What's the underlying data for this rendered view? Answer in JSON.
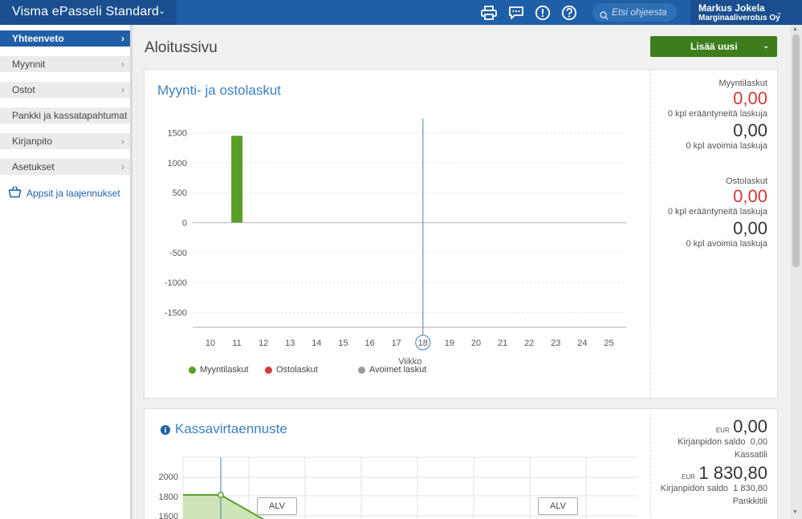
{
  "app": {
    "title": "Visma ePasseli Standard"
  },
  "search": {
    "placeholder": "Etsi ohjeesta"
  },
  "user": {
    "name": "Markus Jokela",
    "company": "Marginaaliverotus Oy"
  },
  "sidebar": {
    "items": [
      {
        "label": "Yhteenveto",
        "active": true
      },
      {
        "label": "Myynnit"
      },
      {
        "label": "Ostot"
      },
      {
        "label": "Pankki ja kassatapahtumat"
      },
      {
        "label": "Kirjanpito"
      },
      {
        "label": "Asetukset"
      }
    ],
    "apps_label": "Appsit ja laajennukset"
  },
  "page": {
    "title": "Aloitussivu",
    "add_button": "Lisää uusi"
  },
  "invoices_card": {
    "title": "Myynti- ja ostolaskut",
    "sales": {
      "label": "Myyntilaskut",
      "overdue_value": "0,00",
      "overdue_text": "0 kpl erääntyneitä laskuja",
      "open_value": "0,00",
      "open_text": "0 kpl avoimia laskuja"
    },
    "purchases": {
      "label": "Ostolaskut",
      "overdue_value": "0,00",
      "overdue_text": "0 kpl erääntyneitä laskuja",
      "open_value": "0,00",
      "open_text": "0 kpl avoimia laskuja"
    }
  },
  "cash_card": {
    "title": "Kassavirtaennuste",
    "cash": {
      "currency": "EUR",
      "value": "0,00",
      "book_label": "Kirjanpidon saldo",
      "book_value": "0,00",
      "account": "Kassatili"
    },
    "bank": {
      "currency": "EUR",
      "value": "1 830,80",
      "book_label": "Kirjanpidon saldo",
      "book_value": "1 830,80",
      "account": "Pankkitili"
    },
    "alv_labels": [
      "ALV",
      "ALV"
    ],
    "y_ticks": [
      "2000",
      "1800",
      "1600"
    ]
  },
  "colors": {
    "accent": "#1f5fa8",
    "sales": "#5a9e2a",
    "purchases": "#d03a3a",
    "open": "#9a9a9a"
  },
  "chart_data": {
    "type": "bar",
    "xlabel": "Viikko",
    "ylabel": "",
    "categories": [
      "10",
      "11",
      "12",
      "13",
      "14",
      "15",
      "16",
      "17",
      "18",
      "19",
      "20",
      "21",
      "22",
      "23",
      "24",
      "25"
    ],
    "ylim": [
      -1700,
      1700
    ],
    "y_ticks": [
      "1500",
      "1000",
      "500",
      "0",
      "-500",
      "-1000",
      "-1500"
    ],
    "current_week": "18",
    "series": [
      {
        "name": "Myyntilaskut",
        "values": [
          0,
          1450,
          0,
          0,
          0,
          0,
          0,
          0,
          0,
          0,
          0,
          0,
          0,
          0,
          0,
          0
        ]
      },
      {
        "name": "Ostolaskut",
        "values": [
          0,
          0,
          0,
          0,
          0,
          0,
          0,
          0,
          0,
          0,
          0,
          0,
          0,
          0,
          0,
          0
        ]
      },
      {
        "name": "Avoimet laskut",
        "values": [
          0,
          0,
          0,
          0,
          0,
          0,
          0,
          0,
          0,
          0,
          0,
          0,
          0,
          0,
          0,
          0
        ]
      }
    ]
  }
}
